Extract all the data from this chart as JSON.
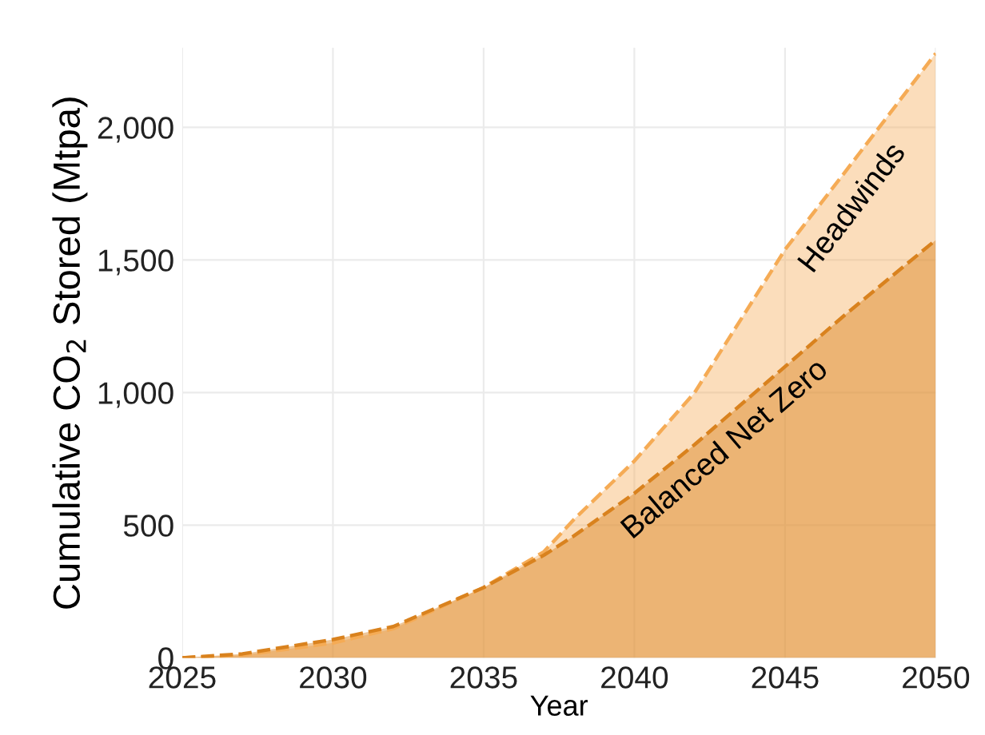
{
  "chart_data": {
    "type": "area",
    "xlabel": "Year",
    "ylabel": "Cumulative CO$_{2}$ Stored (Mtpa)",
    "x": [
      2025,
      2027,
      2030,
      2032,
      2035,
      2037,
      2038,
      2040,
      2042,
      2045,
      2047,
      2050
    ],
    "series": [
      {
        "name": "Headwinds",
        "color": "#f5ab55",
        "values": [
          0,
          10,
          56,
          110,
          265,
          400,
          522,
          742,
          1000,
          1539,
          1833,
          2279
        ]
      },
      {
        "name": "Balanced Net Zero",
        "color": "#d9821e",
        "values": [
          0,
          15,
          69,
          118,
          265,
          387,
          460,
          620,
          804,
          1098,
          1294,
          1575
        ]
      }
    ],
    "xlim": [
      2025,
      2050
    ],
    "xticks": [
      2025,
      2030,
      2035,
      2040,
      2045,
      2050
    ],
    "ylim": [
      0,
      2300
    ],
    "yticks": [
      {
        "value": 0,
        "label": "0"
      },
      {
        "value": 500,
        "label": "500"
      },
      {
        "value": 1000,
        "label": "1,000"
      },
      {
        "value": 1500,
        "label": "1,500"
      },
      {
        "value": 2000,
        "label": "2,000"
      }
    ],
    "grid": true,
    "line_style": "dashed",
    "marker": "none"
  }
}
